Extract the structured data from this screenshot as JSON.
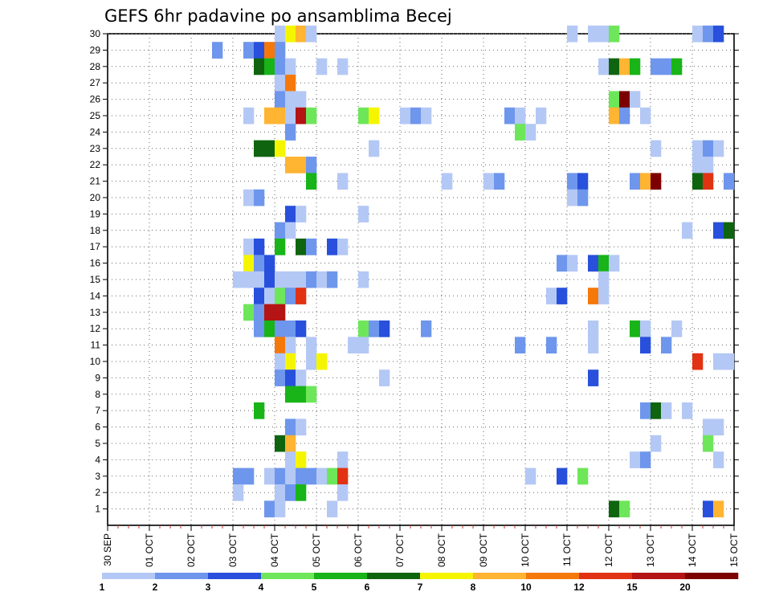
{
  "chart_data": {
    "type": "heatmap",
    "title": "GEFS 6hr padavine po ansamblima Becej",
    "xlabel": "",
    "ylabel": "",
    "x_tick_labels": [
      "30 SEP",
      "01 OCT",
      "02 OCT",
      "03 OCT",
      "04 OCT",
      "05 OCT",
      "06 OCT",
      "07 OCT",
      "08 OCT",
      "09 OCT",
      "10 OCT",
      "11 OCT",
      "12 OCT",
      "13 OCT",
      "14 OCT",
      "15 OCT"
    ],
    "y_tick_labels": [
      "1",
      "2",
      "3",
      "4",
      "5",
      "6",
      "7",
      "8",
      "9",
      "10",
      "11",
      "12",
      "13",
      "14",
      "15",
      "16",
      "17",
      "18",
      "19",
      "20",
      "21",
      "22",
      "23",
      "24",
      "25",
      "26",
      "27",
      "28",
      "29",
      "30"
    ],
    "x_range_steps": [
      0,
      60
    ],
    "steps_per_day": 4,
    "grid": true,
    "colorbar": {
      "placement": "bottom",
      "colors": [
        "#b4c8f5",
        "#6e96ec",
        "#2850dc",
        "#6ee65a",
        "#18b418",
        "#0f640f",
        "#f5f500",
        "#ffb432",
        "#f5780a",
        "#e13214",
        "#b41414",
        "#7d0000"
      ],
      "boundary_labels": [
        "1",
        "2",
        "3",
        "4",
        "5",
        "6",
        "7",
        "8",
        "10",
        "12",
        "15",
        "20"
      ]
    },
    "cells": [
      [
        30,
        16,
        1
      ],
      [
        30,
        17,
        7
      ],
      [
        30,
        18,
        8
      ],
      [
        30,
        19,
        1
      ],
      [
        30,
        44,
        1
      ],
      [
        30,
        46,
        1
      ],
      [
        30,
        47,
        1
      ],
      [
        30,
        48,
        4
      ],
      [
        30,
        56,
        1
      ],
      [
        30,
        57,
        2
      ],
      [
        30,
        58,
        3
      ],
      [
        29,
        10,
        2
      ],
      [
        29,
        13,
        2
      ],
      [
        29,
        14,
        3
      ],
      [
        29,
        15,
        9
      ],
      [
        29,
        16,
        2
      ],
      [
        28,
        14,
        6
      ],
      [
        28,
        15,
        5
      ],
      [
        28,
        16,
        2
      ],
      [
        28,
        17,
        1
      ],
      [
        28,
        20,
        1
      ],
      [
        28,
        22,
        1
      ],
      [
        28,
        47,
        1
      ],
      [
        28,
        48,
        6
      ],
      [
        28,
        49,
        8
      ],
      [
        28,
        50,
        5
      ],
      [
        28,
        52,
        2
      ],
      [
        28,
        53,
        2
      ],
      [
        28,
        54,
        5
      ],
      [
        27,
        16,
        1
      ],
      [
        27,
        17,
        9
      ],
      [
        26,
        16,
        2
      ],
      [
        26,
        17,
        1
      ],
      [
        26,
        18,
        1
      ],
      [
        26,
        48,
        4
      ],
      [
        26,
        49,
        12
      ],
      [
        26,
        50,
        1
      ],
      [
        25,
        13,
        1
      ],
      [
        25,
        15,
        8
      ],
      [
        25,
        16,
        8
      ],
      [
        25,
        17,
        1
      ],
      [
        25,
        18,
        11
      ],
      [
        25,
        19,
        4
      ],
      [
        25,
        24,
        4
      ],
      [
        25,
        25,
        7
      ],
      [
        25,
        28,
        1
      ],
      [
        25,
        29,
        2
      ],
      [
        25,
        30,
        1
      ],
      [
        25,
        38,
        2
      ],
      [
        25,
        39,
        1
      ],
      [
        25,
        41,
        1
      ],
      [
        25,
        48,
        8
      ],
      [
        25,
        49,
        2
      ],
      [
        25,
        51,
        1
      ],
      [
        24,
        17,
        2
      ],
      [
        24,
        39,
        4
      ],
      [
        24,
        40,
        1
      ],
      [
        23,
        14,
        6
      ],
      [
        23,
        15,
        6
      ],
      [
        23,
        16,
        7
      ],
      [
        23,
        25,
        1
      ],
      [
        23,
        52,
        1
      ],
      [
        23,
        56,
        1
      ],
      [
        23,
        57,
        2
      ],
      [
        23,
        58,
        1
      ],
      [
        22,
        17,
        8
      ],
      [
        22,
        18,
        8
      ],
      [
        22,
        19,
        2
      ],
      [
        22,
        56,
        1
      ],
      [
        22,
        57,
        1
      ],
      [
        21,
        19,
        5
      ],
      [
        21,
        22,
        1
      ],
      [
        21,
        32,
        1
      ],
      [
        21,
        36,
        1
      ],
      [
        21,
        37,
        2
      ],
      [
        21,
        44,
        2
      ],
      [
        21,
        45,
        3
      ],
      [
        21,
        50,
        2
      ],
      [
        21,
        51,
        8
      ],
      [
        21,
        52,
        12
      ],
      [
        21,
        56,
        6
      ],
      [
        21,
        57,
        10
      ],
      [
        21,
        59,
        2
      ],
      [
        20,
        13,
        1
      ],
      [
        20,
        14,
        2
      ],
      [
        20,
        44,
        1
      ],
      [
        20,
        45,
        2
      ],
      [
        19,
        17,
        3
      ],
      [
        19,
        18,
        1
      ],
      [
        19,
        24,
        1
      ],
      [
        18,
        16,
        2
      ],
      [
        18,
        17,
        1
      ],
      [
        18,
        55,
        1
      ],
      [
        18,
        58,
        3
      ],
      [
        18,
        59,
        6
      ],
      [
        17,
        13,
        1
      ],
      [
        17,
        14,
        3
      ],
      [
        17,
        16,
        5
      ],
      [
        17,
        18,
        6
      ],
      [
        17,
        19,
        2
      ],
      [
        17,
        21,
        3
      ],
      [
        17,
        22,
        1
      ],
      [
        16,
        13,
        7
      ],
      [
        16,
        14,
        2
      ],
      [
        16,
        15,
        3
      ],
      [
        16,
        43,
        2
      ],
      [
        16,
        44,
        1
      ],
      [
        16,
        46,
        3
      ],
      [
        16,
        47,
        5
      ],
      [
        16,
        48,
        1
      ],
      [
        15,
        12,
        1
      ],
      [
        15,
        13,
        1
      ],
      [
        15,
        14,
        1
      ],
      [
        15,
        15,
        3
      ],
      [
        15,
        16,
        1
      ],
      [
        15,
        17,
        1
      ],
      [
        15,
        18,
        1
      ],
      [
        15,
        19,
        2
      ],
      [
        15,
        20,
        1
      ],
      [
        15,
        21,
        2
      ],
      [
        15,
        24,
        1
      ],
      [
        15,
        47,
        1
      ],
      [
        14,
        14,
        3
      ],
      [
        14,
        15,
        1
      ],
      [
        14,
        16,
        4
      ],
      [
        14,
        17,
        2
      ],
      [
        14,
        18,
        10
      ],
      [
        14,
        42,
        1
      ],
      [
        14,
        43,
        3
      ],
      [
        14,
        46,
        9
      ],
      [
        14,
        47,
        1
      ],
      [
        13,
        13,
        4
      ],
      [
        13,
        14,
        2
      ],
      [
        13,
        15,
        11
      ],
      [
        13,
        16,
        11
      ],
      [
        12,
        14,
        2
      ],
      [
        12,
        15,
        5
      ],
      [
        12,
        16,
        2
      ],
      [
        12,
        17,
        2
      ],
      [
        12,
        18,
        3
      ],
      [
        12,
        24,
        4
      ],
      [
        12,
        25,
        2
      ],
      [
        12,
        26,
        3
      ],
      [
        12,
        30,
        2
      ],
      [
        12,
        46,
        1
      ],
      [
        12,
        50,
        5
      ],
      [
        12,
        51,
        1
      ],
      [
        12,
        54,
        1
      ],
      [
        11,
        16,
        9
      ],
      [
        11,
        17,
        1
      ],
      [
        11,
        19,
        1
      ],
      [
        11,
        23,
        1
      ],
      [
        11,
        24,
        1
      ],
      [
        11,
        39,
        2
      ],
      [
        11,
        42,
        2
      ],
      [
        11,
        46,
        1
      ],
      [
        11,
        51,
        3
      ],
      [
        11,
        53,
        2
      ],
      [
        10,
        16,
        1
      ],
      [
        10,
        17,
        7
      ],
      [
        10,
        19,
        1
      ],
      [
        10,
        20,
        7
      ],
      [
        10,
        56,
        10
      ],
      [
        10,
        58,
        1
      ],
      [
        10,
        59,
        1
      ],
      [
        9,
        16,
        2
      ],
      [
        9,
        17,
        3
      ],
      [
        9,
        18,
        1
      ],
      [
        9,
        26,
        1
      ],
      [
        9,
        46,
        3
      ],
      [
        8,
        17,
        5
      ],
      [
        8,
        18,
        5
      ],
      [
        8,
        19,
        4
      ],
      [
        7,
        14,
        5
      ],
      [
        7,
        51,
        2
      ],
      [
        7,
        52,
        6
      ],
      [
        7,
        53,
        1
      ],
      [
        7,
        55,
        1
      ],
      [
        6,
        17,
        2
      ],
      [
        6,
        18,
        1
      ],
      [
        6,
        57,
        1
      ],
      [
        6,
        58,
        1
      ],
      [
        5,
        16,
        6
      ],
      [
        5,
        17,
        8
      ],
      [
        5,
        52,
        1
      ],
      [
        5,
        57,
        4
      ],
      [
        4,
        17,
        1
      ],
      [
        4,
        18,
        7
      ],
      [
        4,
        22,
        1
      ],
      [
        4,
        50,
        1
      ],
      [
        4,
        51,
        2
      ],
      [
        4,
        58,
        1
      ],
      [
        3,
        12,
        2
      ],
      [
        3,
        13,
        2
      ],
      [
        3,
        15,
        1
      ],
      [
        3,
        16,
        2
      ],
      [
        3,
        17,
        1
      ],
      [
        3,
        18,
        2
      ],
      [
        3,
        19,
        2
      ],
      [
        3,
        20,
        1
      ],
      [
        3,
        21,
        4
      ],
      [
        3,
        22,
        10
      ],
      [
        3,
        40,
        1
      ],
      [
        3,
        43,
        3
      ],
      [
        3,
        45,
        4
      ],
      [
        2,
        12,
        1
      ],
      [
        2,
        16,
        1
      ],
      [
        2,
        17,
        2
      ],
      [
        2,
        18,
        5
      ],
      [
        2,
        22,
        1
      ],
      [
        1,
        15,
        2
      ],
      [
        1,
        16,
        1
      ],
      [
        1,
        21,
        1
      ],
      [
        1,
        48,
        6
      ],
      [
        1,
        49,
        4
      ],
      [
        1,
        57,
        3
      ],
      [
        1,
        58,
        8
      ]
    ]
  }
}
